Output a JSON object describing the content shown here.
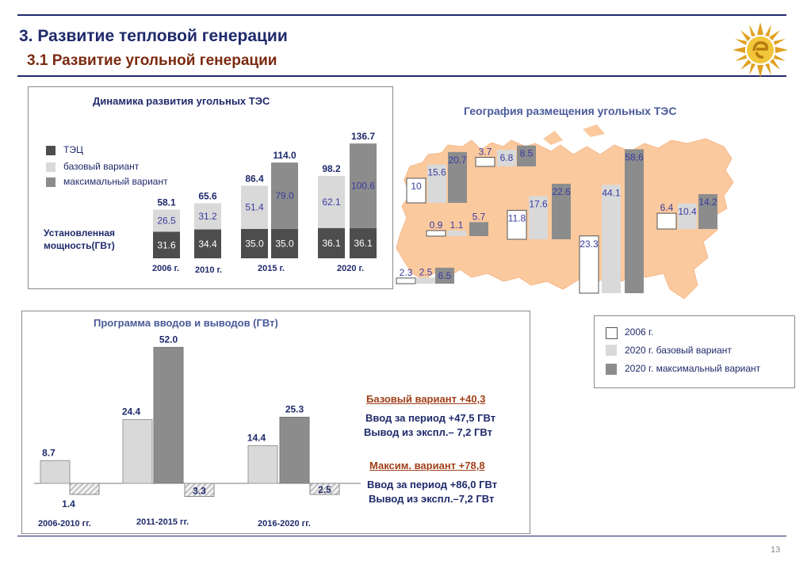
{
  "header": {
    "title": "3. Развитие тепловой генерации",
    "subtitle": "3.1 Развитие угольной генерации",
    "page_number": "13"
  },
  "colors": {
    "dark": "#4d4d4d",
    "light": "#d9d9d9",
    "mid": "#8c8c8c",
    "map": "#fbc99e",
    "accent_blue": "#1f2a6b"
  },
  "chart_data": [
    {
      "type": "bar",
      "title": "Динамика развития угольных ТЭС",
      "legend": [
        "ТЭЦ",
        "базовый вариант",
        "максимальный вариант"
      ],
      "side_label": "Установленная мощность(ГВт)",
      "categories": [
        "2006 г.",
        "2010 г.",
        "2015 г.",
        "2020 г."
      ],
      "stacks": [
        {
          "category": "2006 г.",
          "bars": [
            {
              "tec": 31.6,
              "top": 26.5,
              "top_series": "базовый вариант",
              "total": 58.1
            }
          ]
        },
        {
          "category": "2010 г.",
          "bars": [
            {
              "tec": 34.4,
              "top": 31.2,
              "top_series": "базовый вариант",
              "total": 65.6
            }
          ]
        },
        {
          "category": "2015 г.",
          "bars": [
            {
              "tec": 35.0,
              "top": 51.4,
              "top_series": "базовый вариант",
              "total": 86.4
            },
            {
              "tec": 35.0,
              "top": 79.0,
              "top_series": "максимальный вариант",
              "total": 114.0
            }
          ]
        },
        {
          "category": "2020 г.",
          "bars": [
            {
              "tec": 36.1,
              "top": 62.1,
              "top_series": "базовый вариант",
              "total": 98.2
            },
            {
              "tec": 36.1,
              "top": 100.6,
              "top_series": "максимальный вариант",
              "total": 136.7
            }
          ]
        }
      ]
    },
    {
      "type": "bar",
      "title": "География размещения угольных ТЭС",
      "legend": [
        "2006 г.",
        "2020 г. базовый вариант",
        "2020 г. максимальный вариант"
      ],
      "groups": [
        {
          "values": [
            2.3,
            2.5,
            6.5
          ]
        },
        {
          "values": [
            10,
            15.6,
            20.7
          ]
        },
        {
          "values": [
            0.9,
            1.1,
            5.7
          ]
        },
        {
          "values": [
            3.7,
            6.8,
            8.5
          ]
        },
        {
          "values": [
            11.8,
            17.6,
            22.6
          ]
        },
        {
          "values": [
            23.3,
            44.1,
            58.6
          ]
        },
        {
          "values": [
            6.4,
            10.4,
            14.2
          ]
        }
      ],
      "labels_as_shown": [
        "2.3",
        "2.5",
        "6.5",
        "10",
        "15.6",
        "20.7",
        "0.9",
        "1.1",
        "5.7",
        "3.7",
        "6.8",
        "8.5",
        "11.8",
        "17.6",
        "22.6",
        "23.3",
        "44.1",
        "58,6",
        "6.4",
        "10.4",
        "14.2"
      ]
    },
    {
      "type": "bar",
      "title": "Программа вводов и выводов (ГВт)",
      "categories": [
        "2006-2010 гг.",
        "2011-2015 гг.",
        "2016-2020 гг."
      ],
      "series": [
        {
          "name": "базовый вариант",
          "values": [
            8.7,
            24.4,
            14.4
          ]
        },
        {
          "name": "максимальный вариант",
          "values": [
            null,
            52.0,
            25.3
          ]
        },
        {
          "name": "вывод",
          "values": [
            -1.4,
            -3.3,
            -2.5
          ]
        }
      ],
      "value_labels": [
        "8.7",
        "1.4",
        "24.4",
        "52.0",
        "3.3",
        "14.4",
        "25.3",
        "2.5"
      ]
    }
  ],
  "notes": {
    "base_head": "Базовый вариант +40,3",
    "base_in": "Ввод за период +47,5 ГВт",
    "base_out": "Вывод из экспл.– 7,2 ГВт",
    "max_head": "Максим. вариант +78,8",
    "max_in": "Ввод за период +86,0 ГВт",
    "max_out": "Вывод из экспл.–7,2 ГВт"
  }
}
